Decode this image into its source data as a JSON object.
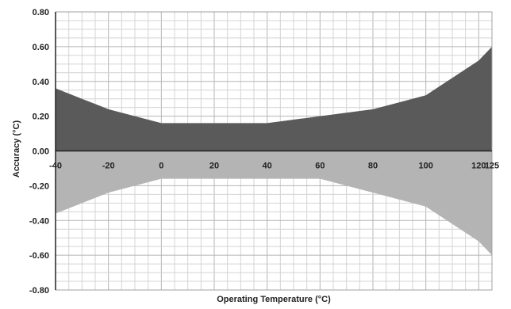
{
  "chart_data": {
    "type": "area",
    "xlabel": "Operating Temperature (°C)",
    "ylabel": "Accuracy (°C)",
    "x_ticks": [
      "-40",
      "-20",
      "0",
      "20",
      "40",
      "60",
      "80",
      "100",
      "120",
      "125"
    ],
    "y_ticks": [
      "0.80",
      "0.60",
      "0.40",
      "0.20",
      "0.00",
      "-0.20",
      "-0.40",
      "-0.60",
      "-0.80"
    ],
    "ylim": [
      -0.8,
      0.8
    ],
    "grid": true,
    "series": [
      {
        "color": "#5a5a5a",
        "x": [
          -40,
          -30,
          -20,
          -10,
          0,
          40,
          50,
          60,
          80,
          100,
          120,
          125
        ],
        "y": [
          0.36,
          0.3,
          0.24,
          0.2,
          0.16,
          0.16,
          0.18,
          0.2,
          0.24,
          0.32,
          0.52,
          0.6
        ]
      },
      {
        "color": "#b4b4b4",
        "x": [
          -40,
          -30,
          -20,
          -10,
          0,
          40,
          50,
          60,
          80,
          100,
          120,
          125
        ],
        "y": [
          -0.36,
          -0.3,
          -0.24,
          -0.2,
          -0.16,
          -0.16,
          -0.16,
          -0.16,
          -0.24,
          -0.32,
          -0.52,
          -0.6
        ]
      }
    ]
  }
}
